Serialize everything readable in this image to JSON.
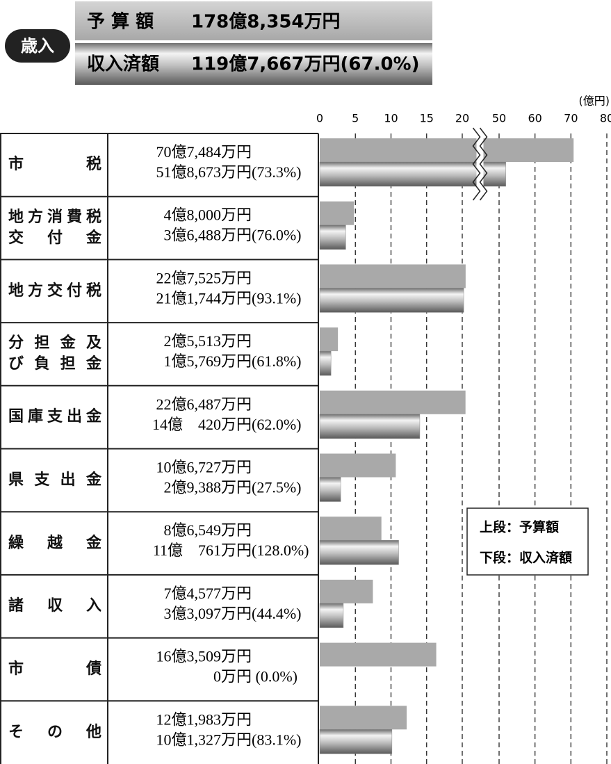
{
  "header": {
    "badge": "歳入",
    "rows": [
      {
        "label": "予 算 額",
        "amount": "178億8,354万円"
      },
      {
        "label": "収入済額",
        "amount": "119億7,667万円(67.0%)"
      }
    ]
  },
  "chart_data": {
    "type": "bar",
    "orientation": "horizontal",
    "unit": "(億円)",
    "categories": [
      [
        "市税"
      ],
      [
        "地方消費税",
        "交付金"
      ],
      [
        "地方交付税"
      ],
      [
        "分担金及",
        "び負担金"
      ],
      [
        "国庫支出金"
      ],
      [
        "県支出金"
      ],
      [
        "繰越金"
      ],
      [
        "諸収入"
      ],
      [
        "市債"
      ],
      [
        "その他"
      ]
    ],
    "series": [
      {
        "name": "予算額",
        "legend": "上段：予算額",
        "color": "#a9a9a9",
        "values": [
          70.7484,
          4.8,
          22.7525,
          2.5513,
          22.6487,
          10.6727,
          8.6549,
          7.4577,
          16.3509,
          12.1983
        ],
        "value_labels": [
          "70億7,484万円",
          "4億8,000万円",
          "22億7,525万円",
          "2億5,513万円",
          "22億6,487万円",
          "10億6,727万円",
          "8億6,549万円",
          "7億4,577万円",
          "16億3,509万円",
          "12億1,983万円"
        ]
      },
      {
        "name": "収入済額",
        "legend": "下段：収入済額",
        "color": "#8c8c8c",
        "values": [
          51.8673,
          3.6488,
          21.1744,
          1.5769,
          14.042,
          2.9388,
          11.0761,
          3.3097,
          0,
          10.1327
        ],
        "value_labels": [
          "51億8,673万円",
          "3億6,488万円",
          "21億1,744万円",
          "1億5,769万円",
          "14億　420万円",
          "2億9,388万円",
          "11億　761万円",
          "3億3,097万円",
          "0万円",
          "10億1,327万円"
        ],
        "rates": [
          73.3,
          76.0,
          93.1,
          61.8,
          62.0,
          27.5,
          128.0,
          44.4,
          0.0,
          83.1
        ],
        "rate_labels": [
          "(73.3%)",
          "(76.0%)",
          "(93.1%)",
          "(61.8%)",
          "(62.0%)",
          "(27.5%)",
          "(128.0%)",
          "(44.4%)",
          " (0.0%)",
          "(83.1%)"
        ]
      }
    ],
    "xlim": [
      0,
      80
    ],
    "xticks": [
      0,
      5,
      10,
      15,
      20,
      50,
      60,
      70,
      80
    ],
    "axis_break": [
      20,
      50
    ],
    "grid": true,
    "legend_position": "right"
  }
}
